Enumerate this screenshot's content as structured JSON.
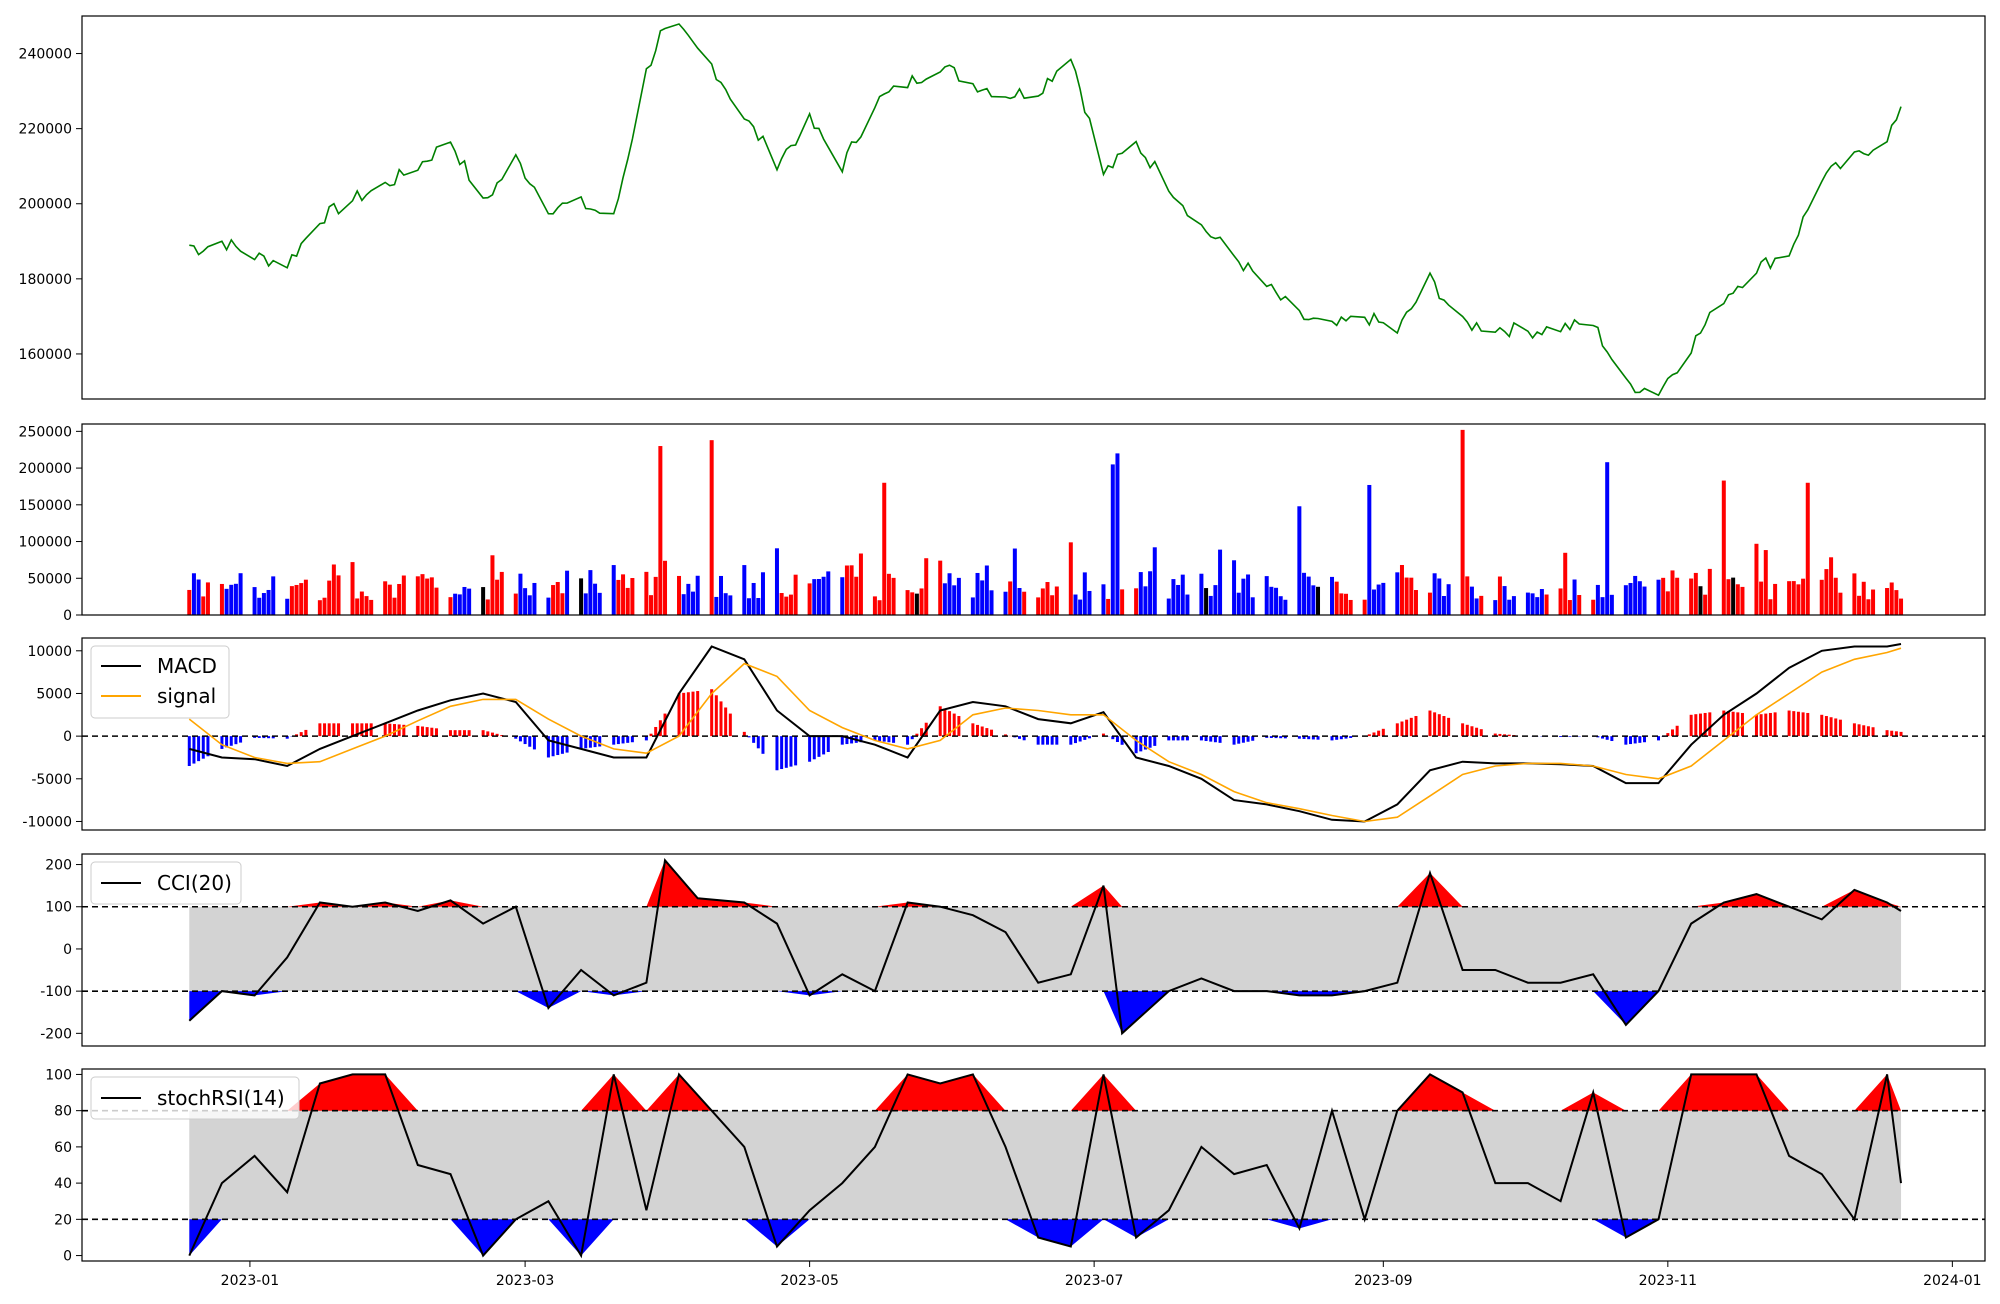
{
  "chart_data": [
    {
      "name": "price",
      "type": "line",
      "title": "",
      "xlabel": "",
      "ylabel": "",
      "ylim": [
        148000,
        250000
      ],
      "yticks": [
        160000,
        180000,
        200000,
        220000,
        240000
      ],
      "grid": false,
      "colors": {
        "line": "#008000"
      },
      "x": [
        "2022-12-19",
        "2022-12-21",
        "2022-12-26",
        "2023-01-02",
        "2023-01-09",
        "2023-01-16",
        "2023-01-23",
        "2023-01-30",
        "2023-02-06",
        "2023-02-13",
        "2023-02-20",
        "2023-02-27",
        "2023-03-06",
        "2023-03-13",
        "2023-03-20",
        "2023-03-27",
        "2023-03-30",
        "2023-04-03",
        "2023-04-10",
        "2023-04-17",
        "2023-04-24",
        "2023-05-01",
        "2023-05-08",
        "2023-05-15",
        "2023-05-22",
        "2023-05-29",
        "2023-06-05",
        "2023-06-12",
        "2023-06-19",
        "2023-06-26",
        "2023-07-03",
        "2023-07-10",
        "2023-07-17",
        "2023-07-24",
        "2023-07-31",
        "2023-08-07",
        "2023-08-14",
        "2023-08-21",
        "2023-08-28",
        "2023-09-04",
        "2023-09-11",
        "2023-09-18",
        "2023-09-25",
        "2023-10-02",
        "2023-10-09",
        "2023-10-16",
        "2023-10-23",
        "2023-10-30",
        "2023-11-06",
        "2023-11-13",
        "2023-11-20",
        "2023-11-27",
        "2023-12-04",
        "2023-12-11",
        "2023-12-18",
        "2023-12-21"
      ],
      "values": [
        189000,
        188000,
        190000,
        186000,
        184000,
        196000,
        201000,
        205000,
        210000,
        217000,
        200000,
        212000,
        199000,
        200000,
        196000,
        235000,
        245000,
        246000,
        237000,
        223000,
        211000,
        222000,
        210000,
        227000,
        232000,
        237000,
        232000,
        229000,
        230000,
        240000,
        208000,
        216000,
        205000,
        194000,
        186000,
        178000,
        170000,
        167000,
        170000,
        166000,
        180000,
        168000,
        167000,
        166000,
        167000,
        168000,
        152000,
        150000,
        162000,
        175000,
        183000,
        187000,
        207000,
        212000,
        218000,
        224000
      ]
    },
    {
      "name": "volume",
      "type": "bar",
      "title": "",
      "xlabel": "",
      "ylabel": "",
      "ylim": [
        0,
        260000
      ],
      "yticks": [
        0,
        50000,
        100000,
        150000,
        200000,
        250000
      ],
      "grid": false,
      "colors": {
        "up": "#ff0000",
        "down": "#0000ff",
        "flat": "#000000"
      },
      "spikes": [
        {
          "x": "2023-03-30",
          "value": 230000,
          "color": "#ff0000"
        },
        {
          "x": "2023-04-10",
          "value": 238000,
          "color": "#ff0000"
        },
        {
          "x": "2023-05-17",
          "value": 180000,
          "color": "#ff0000"
        },
        {
          "x": "2023-07-05",
          "value": 205000,
          "color": "#0000ff"
        },
        {
          "x": "2023-07-06",
          "value": 220000,
          "color": "#0000ff"
        },
        {
          "x": "2023-08-14",
          "value": 148000,
          "color": "#0000ff"
        },
        {
          "x": "2023-08-29",
          "value": 177000,
          "color": "#0000ff"
        },
        {
          "x": "2023-09-18",
          "value": 252000,
          "color": "#ff0000"
        },
        {
          "x": "2023-10-19",
          "value": 208000,
          "color": "#0000ff"
        },
        {
          "x": "2023-11-13",
          "value": 183000,
          "color": "#ff0000"
        },
        {
          "x": "2023-12-01",
          "value": 180000,
          "color": "#ff0000"
        }
      ]
    },
    {
      "name": "macd",
      "type": "line",
      "title": "",
      "xlabel": "",
      "ylabel": "",
      "ylim": [
        -11000,
        11500
      ],
      "yticks": [
        -10000,
        -5000,
        0,
        5000,
        10000
      ],
      "grid": false,
      "legend_placement": "upper-left",
      "hline": 0,
      "colors": {
        "hist_pos": "#ff0000",
        "hist_neg": "#0000ff"
      },
      "x": [
        "2022-12-19",
        "2022-12-26",
        "2023-01-02",
        "2023-01-09",
        "2023-01-16",
        "2023-01-23",
        "2023-01-30",
        "2023-02-06",
        "2023-02-13",
        "2023-02-20",
        "2023-02-27",
        "2023-03-06",
        "2023-03-13",
        "2023-03-20",
        "2023-03-27",
        "2023-04-03",
        "2023-04-10",
        "2023-04-17",
        "2023-04-24",
        "2023-05-01",
        "2023-05-08",
        "2023-05-15",
        "2023-05-22",
        "2023-05-29",
        "2023-06-05",
        "2023-06-12",
        "2023-06-19",
        "2023-06-26",
        "2023-07-03",
        "2023-07-10",
        "2023-07-17",
        "2023-07-24",
        "2023-07-31",
        "2023-08-07",
        "2023-08-14",
        "2023-08-21",
        "2023-08-28",
        "2023-09-04",
        "2023-09-11",
        "2023-09-18",
        "2023-09-25",
        "2023-10-02",
        "2023-10-09",
        "2023-10-16",
        "2023-10-23",
        "2023-10-30",
        "2023-11-06",
        "2023-11-13",
        "2023-11-20",
        "2023-11-27",
        "2023-12-04",
        "2023-12-11",
        "2023-12-18",
        "2023-12-21"
      ],
      "series": [
        {
          "name": "MACD",
          "color": "#000000",
          "values": [
            -1500,
            -2500,
            -2700,
            -3500,
            -1500,
            0,
            1500,
            3000,
            4200,
            5000,
            4000,
            -500,
            -1500,
            -2500,
            -2500,
            5000,
            10500,
            9000,
            3000,
            0,
            0,
            -1000,
            -2500,
            3000,
            4000,
            3500,
            2000,
            1500,
            2800,
            -2500,
            -3500,
            -5000,
            -7500,
            -8000,
            -8800,
            -9800,
            -10000,
            -8000,
            -4000,
            -3000,
            -3200,
            -3200,
            -3300,
            -3500,
            -5500,
            -5500,
            -1000,
            2500,
            5000,
            8000,
            10000,
            10500,
            10500,
            10800
          ]
        },
        {
          "name": "signal",
          "color": "#ffa500",
          "values": [
            2000,
            -1000,
            -2500,
            -3200,
            -3000,
            -1500,
            0,
            1800,
            3500,
            4300,
            4300,
            2000,
            0,
            -1500,
            -2000,
            0,
            5000,
            8500,
            7000,
            3000,
            1000,
            -500,
            -1500,
            -500,
            2500,
            3300,
            3000,
            2500,
            2500,
            -500,
            -3000,
            -4500,
            -6500,
            -7800,
            -8500,
            -9300,
            -10000,
            -9500,
            -7000,
            -4500,
            -3500,
            -3200,
            -3200,
            -3500,
            -4500,
            -5000,
            -3500,
            -500,
            2500,
            5000,
            7500,
            9000,
            9800,
            10300
          ]
        }
      ]
    },
    {
      "name": "cci",
      "type": "line",
      "title": "",
      "xlabel": "",
      "ylabel": "",
      "ylim": [
        -230,
        225
      ],
      "yticks": [
        -200,
        -100,
        0,
        100,
        200
      ],
      "grid": false,
      "legend_placement": "upper-left",
      "hlines": [
        100,
        -100
      ],
      "band": [
        -100,
        100
      ],
      "colors": {
        "band": "#d3d3d3",
        "over": "#ff0000",
        "under": "#0000ff"
      },
      "x": [
        "2022-12-19",
        "2022-12-26",
        "2023-01-02",
        "2023-01-09",
        "2023-01-16",
        "2023-01-23",
        "2023-01-30",
        "2023-02-06",
        "2023-02-13",
        "2023-02-20",
        "2023-02-27",
        "2023-03-06",
        "2023-03-13",
        "2023-03-20",
        "2023-03-27",
        "2023-03-31",
        "2023-04-07",
        "2023-04-17",
        "2023-04-24",
        "2023-05-01",
        "2023-05-08",
        "2023-05-15",
        "2023-05-22",
        "2023-05-29",
        "2023-06-05",
        "2023-06-12",
        "2023-06-19",
        "2023-06-26",
        "2023-07-03",
        "2023-07-07",
        "2023-07-17",
        "2023-07-24",
        "2023-07-31",
        "2023-08-07",
        "2023-08-14",
        "2023-08-21",
        "2023-08-28",
        "2023-09-04",
        "2023-09-11",
        "2023-09-18",
        "2023-09-25",
        "2023-10-02",
        "2023-10-09",
        "2023-10-16",
        "2023-10-23",
        "2023-10-30",
        "2023-11-06",
        "2023-11-13",
        "2023-11-20",
        "2023-11-27",
        "2023-12-04",
        "2023-12-11",
        "2023-12-18",
        "2023-12-21"
      ],
      "series": [
        {
          "name": "CCI(20)",
          "color": "#000000",
          "values": [
            -170,
            -100,
            -110,
            -20,
            110,
            100,
            110,
            90,
            115,
            60,
            100,
            -140,
            -50,
            -110,
            -80,
            210,
            120,
            110,
            60,
            -110,
            -60,
            -100,
            110,
            100,
            80,
            40,
            -80,
            -60,
            150,
            -200,
            -100,
            -70,
            -100,
            -100,
            -110,
            -110,
            -100,
            -80,
            180,
            -50,
            -50,
            -80,
            -80,
            -60,
            -180,
            -100,
            60,
            110,
            130,
            100,
            70,
            140,
            110,
            90
          ]
        }
      ]
    },
    {
      "name": "stochrsi",
      "type": "line",
      "title": "",
      "xlabel": "",
      "ylabel": "",
      "ylim": [
        -3,
        103
      ],
      "yticks": [
        0,
        20,
        40,
        60,
        80,
        100
      ],
      "grid": false,
      "legend_placement": "upper-left",
      "hlines": [
        80,
        20
      ],
      "band": [
        20,
        80
      ],
      "colors": {
        "band": "#d3d3d3",
        "over": "#ff0000",
        "under": "#0000ff"
      },
      "x": [
        "2022-12-19",
        "2022-12-26",
        "2023-01-02",
        "2023-01-09",
        "2023-01-16",
        "2023-01-23",
        "2023-01-30",
        "2023-02-06",
        "2023-02-13",
        "2023-02-20",
        "2023-02-27",
        "2023-03-06",
        "2023-03-13",
        "2023-03-20",
        "2023-03-27",
        "2023-04-03",
        "2023-04-10",
        "2023-04-17",
        "2023-04-24",
        "2023-05-01",
        "2023-05-08",
        "2023-05-15",
        "2023-05-22",
        "2023-05-29",
        "2023-06-05",
        "2023-06-12",
        "2023-06-19",
        "2023-06-26",
        "2023-07-03",
        "2023-07-10",
        "2023-07-17",
        "2023-07-24",
        "2023-07-31",
        "2023-08-07",
        "2023-08-14",
        "2023-08-21",
        "2023-08-28",
        "2023-09-04",
        "2023-09-11",
        "2023-09-18",
        "2023-09-25",
        "2023-10-02",
        "2023-10-09",
        "2023-10-16",
        "2023-10-23",
        "2023-10-30",
        "2023-11-06",
        "2023-11-13",
        "2023-11-20",
        "2023-11-27",
        "2023-12-04",
        "2023-12-11",
        "2023-12-18",
        "2023-12-21"
      ],
      "series": [
        {
          "name": "stochRSI(14)",
          "color": "#000000",
          "values": [
            0,
            40,
            55,
            35,
            95,
            100,
            100,
            50,
            45,
            0,
            20,
            30,
            0,
            100,
            25,
            100,
            80,
            60,
            5,
            25,
            40,
            60,
            100,
            95,
            100,
            60,
            10,
            5,
            100,
            10,
            25,
            60,
            45,
            50,
            15,
            80,
            20,
            80,
            100,
            90,
            40,
            40,
            30,
            90,
            10,
            20,
            100,
            100,
            100,
            55,
            45,
            20,
            100,
            40
          ]
        }
      ]
    }
  ],
  "shared_x": {
    "range": [
      "2022-11-26",
      "2024-01-08"
    ],
    "ticks": [
      "2023-01",
      "2023-03",
      "2023-05",
      "2023-07",
      "2023-09",
      "2023-11",
      "2024-01"
    ]
  }
}
